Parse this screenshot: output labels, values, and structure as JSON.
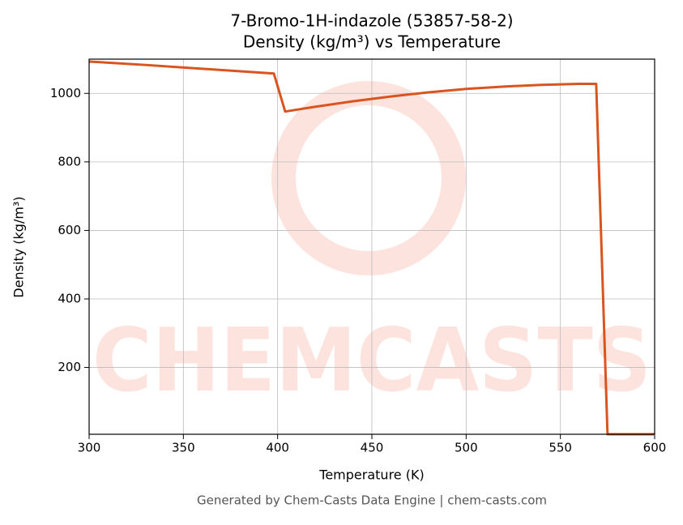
{
  "chart_data": {
    "type": "line",
    "title": "7-Bromo-1H-indazole (53857-58-2)",
    "subtitle": "Density (kg/m³) vs Temperature",
    "x_label": "Temperature (K)",
    "y_label": "Density (kg/m³)",
    "caption": "Generated by Chem-Casts Data Engine | chem-casts.com",
    "watermark": "CHEMCASTS",
    "x": [
      300,
      330,
      360,
      398,
      404,
      420,
      440,
      460,
      480,
      500,
      520,
      540,
      560,
      569,
      575,
      600
    ],
    "values": [
      1093,
      1083,
      1072,
      1058,
      947,
      961,
      977,
      991,
      1003,
      1013,
      1020,
      1025,
      1028,
      1028,
      5,
      5
    ],
    "color": "#d9541e",
    "xlim": [
      300,
      600
    ],
    "ylim": [
      5,
      1100
    ],
    "xticks": [
      300,
      350,
      400,
      450,
      500,
      550,
      600
    ],
    "yticks": [
      200,
      400,
      600,
      800,
      1000
    ],
    "grid": true
  }
}
